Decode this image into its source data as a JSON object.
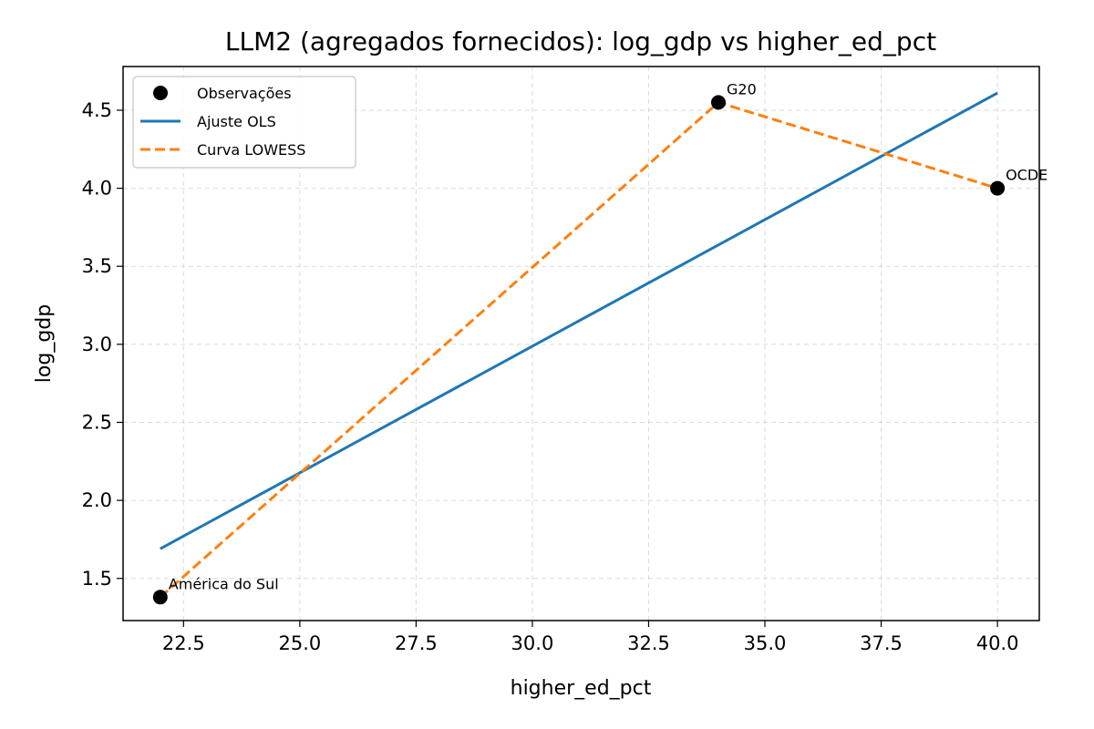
{
  "chart_data": {
    "type": "scatter",
    "title": "LLM2 (agregados fornecidos): log_gdp vs higher_ed_pct",
    "xlabel": "higher_ed_pct",
    "ylabel": "log_gdp",
    "xlim": [
      21.2,
      40.9
    ],
    "ylim": [
      1.23,
      4.78
    ],
    "xticks": [
      22.5,
      25.0,
      27.5,
      30.0,
      32.5,
      35.0,
      37.5,
      40.0
    ],
    "yticks": [
      1.5,
      2.0,
      2.5,
      3.0,
      3.5,
      4.0,
      4.5
    ],
    "xtick_labels": [
      "22.5",
      "25.0",
      "27.5",
      "30.0",
      "32.5",
      "35.0",
      "37.5",
      "40.0"
    ],
    "ytick_labels": [
      "1.5",
      "2.0",
      "2.5",
      "3.0",
      "3.5",
      "4.0",
      "4.5"
    ],
    "grid": true,
    "legend_position": "top-left",
    "points": [
      {
        "label": "América do Sul",
        "x": 22.0,
        "y": 1.38
      },
      {
        "label": "G20",
        "x": 34.0,
        "y": 4.55
      },
      {
        "label": "OCDE",
        "x": 40.0,
        "y": 4.0
      }
    ],
    "series": [
      {
        "name": "Observações",
        "kind": "scatter",
        "color": "#000000"
      },
      {
        "name": "Ajuste OLS",
        "kind": "line",
        "color": "#1f77b4",
        "x": [
          22.0,
          40.0
        ],
        "y": [
          1.69,
          4.61
        ]
      },
      {
        "name": "Curva LOWESS",
        "kind": "dashed-line",
        "color": "#ff7f0e",
        "x": [
          22.0,
          34.0,
          40.0
        ],
        "y": [
          1.38,
          4.55,
          4.0
        ]
      }
    ]
  }
}
